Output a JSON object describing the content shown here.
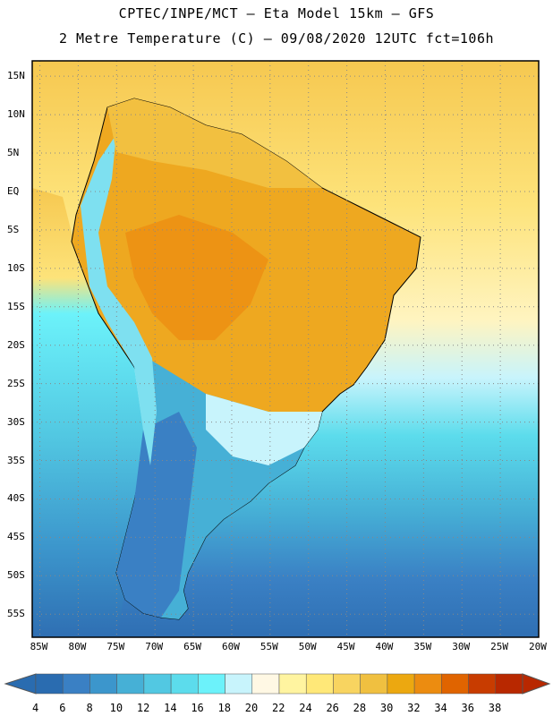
{
  "header": {
    "line1": "CPTEC/INPE/MCT –  Eta Model 15km – GFS",
    "line2": "2 Metre Temperature (C) – 09/08/2020 12UTC fct=106h"
  },
  "axes": {
    "lat_labels": [
      "15N",
      "10N",
      "5N",
      "EQ",
      "5S",
      "10S",
      "15S",
      "20S",
      "25S",
      "30S",
      "35S",
      "40S",
      "45S",
      "50S",
      "55S"
    ],
    "lon_labels": [
      "85W",
      "80W",
      "75W",
      "70W",
      "65W",
      "60W",
      "55W",
      "50W",
      "45W",
      "40W",
      "35W",
      "30W",
      "25W",
      "20W"
    ],
    "grid": "dotted",
    "lat_range": [
      -58,
      17
    ],
    "lon_range": [
      -86,
      -20
    ]
  },
  "colorbar": {
    "ticks": [
      "4",
      "6",
      "8",
      "10",
      "12",
      "14",
      "16",
      "18",
      "20",
      "22",
      "24",
      "26",
      "28",
      "30",
      "32",
      "34",
      "36",
      "38"
    ],
    "colors": [
      "#2a6cb0",
      "#3a80c4",
      "#3c96cc",
      "#46b0d6",
      "#52c8e2",
      "#5cdcec",
      "#6cf2fa",
      "#c8f4fc",
      "#fff8e4",
      "#fff4a0",
      "#ffe878",
      "#f8d460",
      "#f0c040",
      "#eca810",
      "#ec8c10",
      "#e06400",
      "#c83c00",
      "#b82800"
    ]
  },
  "map": {
    "colors": {
      "ocean_south": "#2f6fb3",
      "ocean_mid": "#46b0d6",
      "ocean_cool": "#5cdcec",
      "ocean_warm": "#fde37a",
      "ocean_tropics": "#f6c850",
      "land_hot": "#eea820",
      "land_warm": "#f2c040",
      "andes": "#7ee0f0",
      "patagonia": "#3a80c4"
    }
  }
}
